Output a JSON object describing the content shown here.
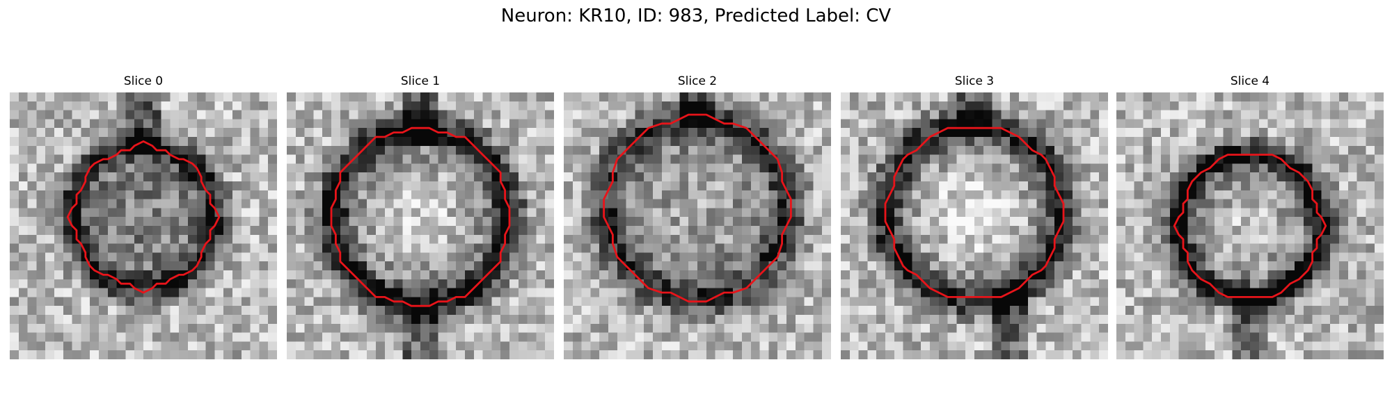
{
  "figure": {
    "title": "Neuron: KR10, ID: 983, Predicted Label: CV"
  },
  "panels": [
    {
      "title": "Slice 0"
    },
    {
      "title": "Slice 1"
    },
    {
      "title": "Slice 2"
    },
    {
      "title": "Slice 3"
    },
    {
      "title": "Slice 4"
    }
  ],
  "colors": {
    "contour": "#e8141a"
  }
}
